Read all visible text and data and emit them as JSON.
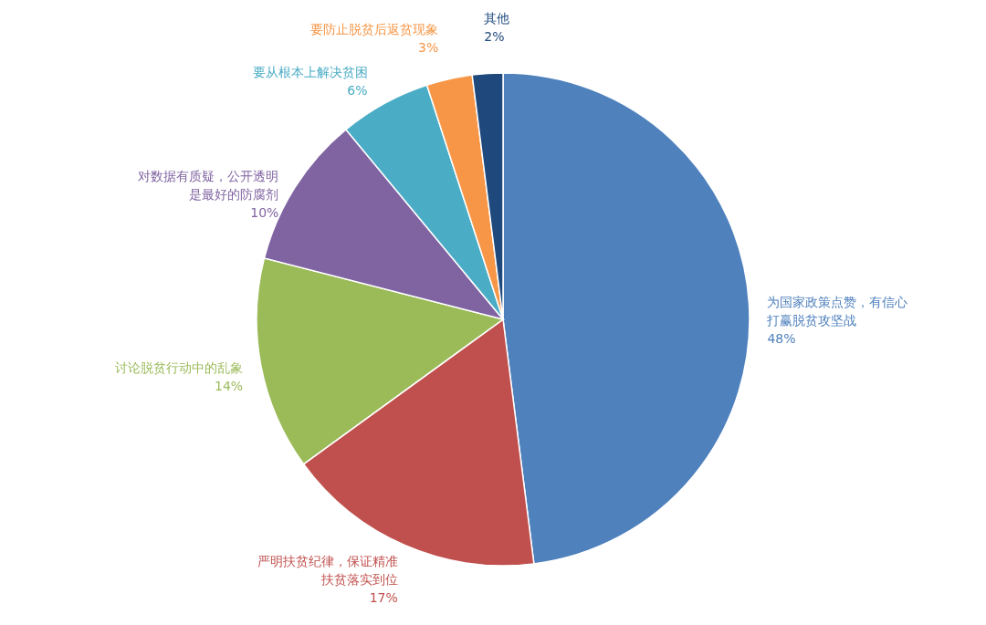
{
  "chart_data": {
    "type": "pie",
    "categories": [
      "为国家政策点赞，有信心打赢脱贫攻坚战",
      "严明扶贫纪律，保证精准扶贫落实到位",
      "讨论脱贫行动中的乱象",
      "对数据有质疑，公开透明是最好的防腐剂",
      "要从根本上解决贫困",
      "要防止脱贫后返贫现象",
      "其他"
    ],
    "values": [
      48,
      17,
      14,
      10,
      6,
      3,
      2
    ],
    "value_labels": [
      "48%",
      "17%",
      "14%",
      "10%",
      "6%",
      "3%",
      "2%"
    ],
    "colors": [
      "#4f81bd",
      "#c0504d",
      "#9bbb59",
      "#8064a2",
      "#4bacc6",
      "#f79646",
      "#1f497d"
    ],
    "legend": false
  }
}
